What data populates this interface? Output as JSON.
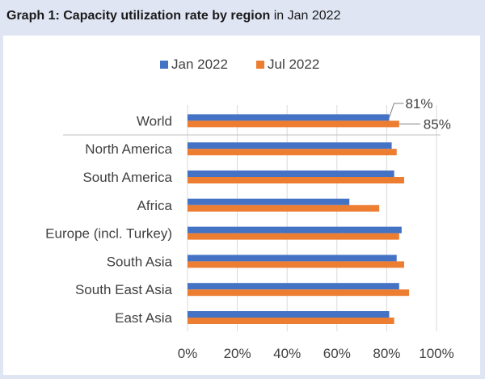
{
  "header": {
    "title_bold": "Graph 1: Capacity utilization rate by region",
    "title_rest": " in Jan 2022"
  },
  "colors": {
    "jan": "#4472c4",
    "jul": "#ed7d31",
    "background": "#dfe5f3"
  },
  "chart_data": {
    "type": "bar",
    "orientation": "horizontal",
    "categories": [
      "World",
      "North America",
      "South America",
      "Africa",
      "Europe (incl. Turkey)",
      "South Asia",
      "South East Asia",
      "East Asia"
    ],
    "series": [
      {
        "name": "Jan 2022",
        "values": [
          81,
          82,
          83,
          65,
          86,
          84,
          85,
          81
        ]
      },
      {
        "name": "Jul 2022",
        "values": [
          85,
          84,
          87,
          77,
          85,
          87,
          89,
          83
        ]
      }
    ],
    "annotations": [
      {
        "series": "Jan 2022",
        "category": "World",
        "text": "81%"
      },
      {
        "series": "Jul 2022",
        "category": "World",
        "text": "85%"
      }
    ],
    "xlim": [
      0,
      100
    ],
    "xticks": [
      "0%",
      "20%",
      "40%",
      "60%",
      "80%",
      "100%"
    ],
    "grid": true,
    "legend_position": "top"
  }
}
